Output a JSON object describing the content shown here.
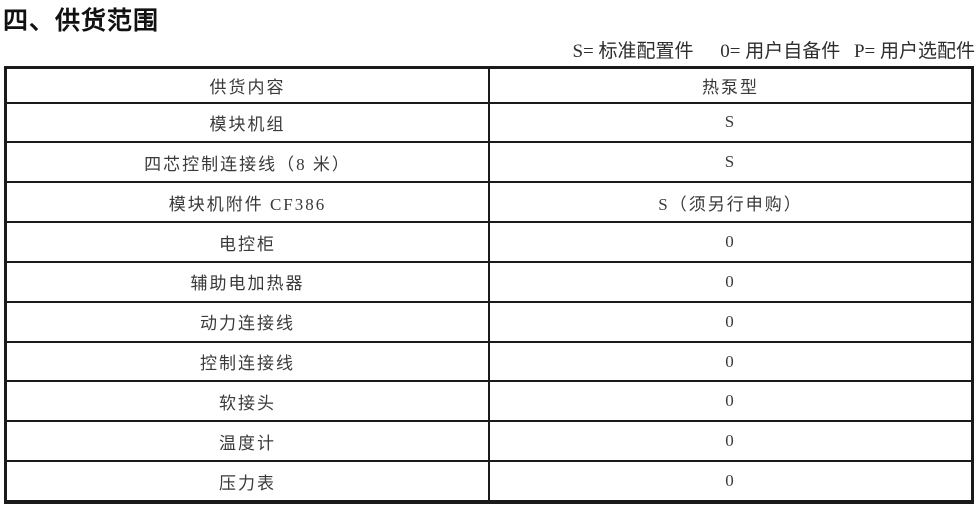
{
  "page": {
    "title": "四、供货范围"
  },
  "legend": {
    "standard": "S= 标准配置件",
    "user_supplied": "0= 用户自备件",
    "optional": "P= 用户选配件"
  },
  "table": {
    "headers": {
      "item": "供货内容",
      "type": "热泵型"
    },
    "rows": [
      {
        "item": "模块机组",
        "value": "S"
      },
      {
        "item": "四芯控制连接线（8 米）",
        "value": "S"
      },
      {
        "item": "模块机附件 CF386",
        "value": "S（须另行申购）"
      },
      {
        "item": "电控柜",
        "value": "0"
      },
      {
        "item": "辅助电加热器",
        "value": "0"
      },
      {
        "item": "动力连接线",
        "value": "0"
      },
      {
        "item": "控制连接线",
        "value": "0"
      },
      {
        "item": "软接头",
        "value": "0"
      },
      {
        "item": "温度计",
        "value": "0"
      },
      {
        "item": "压力表",
        "value": "0"
      }
    ]
  },
  "colors": {
    "border": "#1a1a1a",
    "text": "#3a3a3a",
    "title": "#111111"
  }
}
